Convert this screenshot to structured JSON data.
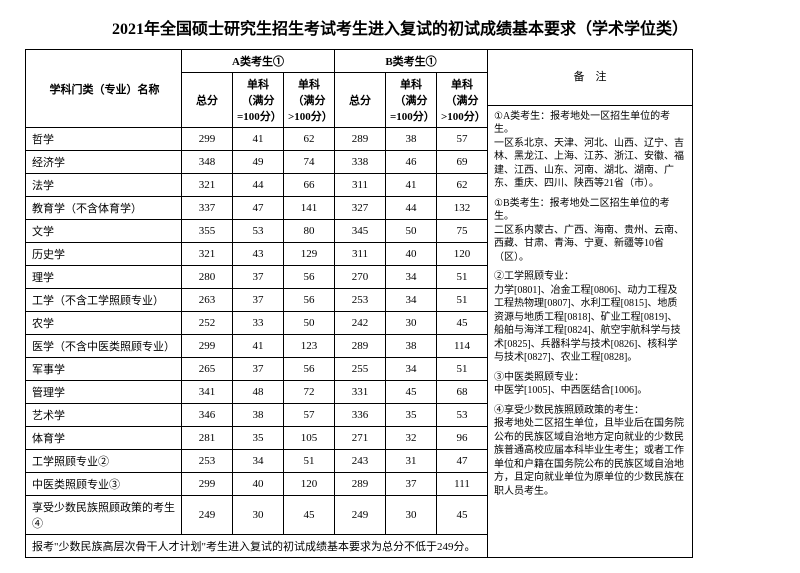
{
  "title": "2021年全国硕士研究生招生考试考生进入复试的初试成绩基本要求（学术学位类）",
  "headers": {
    "subject": "学科门类（专业）名称",
    "catA": "A类考生①",
    "catB": "B类考生①",
    "total": "总分",
    "s100": "单科（满分=100分）",
    "sgt100": "单科（满分>100分）",
    "notes": "备　注"
  },
  "rows": [
    {
      "name": "哲学",
      "a": [
        299,
        41,
        62
      ],
      "b": [
        289,
        38,
        57
      ]
    },
    {
      "name": "经济学",
      "a": [
        348,
        49,
        74
      ],
      "b": [
        338,
        46,
        69
      ]
    },
    {
      "name": "法学",
      "a": [
        321,
        44,
        66
      ],
      "b": [
        311,
        41,
        62
      ]
    },
    {
      "name": "教育学（不含体育学）",
      "a": [
        337,
        47,
        141
      ],
      "b": [
        327,
        44,
        132
      ]
    },
    {
      "name": "文学",
      "a": [
        355,
        53,
        80
      ],
      "b": [
        345,
        50,
        75
      ]
    },
    {
      "name": "历史学",
      "a": [
        321,
        43,
        129
      ],
      "b": [
        311,
        40,
        120
      ]
    },
    {
      "name": "理学",
      "a": [
        280,
        37,
        56
      ],
      "b": [
        270,
        34,
        51
      ]
    },
    {
      "name": "工学（不含工学照顾专业）",
      "a": [
        263,
        37,
        56
      ],
      "b": [
        253,
        34,
        51
      ]
    },
    {
      "name": "农学",
      "a": [
        252,
        33,
        50
      ],
      "b": [
        242,
        30,
        45
      ]
    },
    {
      "name": "医学（不含中医类照顾专业）",
      "a": [
        299,
        41,
        123
      ],
      "b": [
        289,
        38,
        114
      ]
    },
    {
      "name": "军事学",
      "a": [
        265,
        37,
        56
      ],
      "b": [
        255,
        34,
        51
      ]
    },
    {
      "name": "管理学",
      "a": [
        341,
        48,
        72
      ],
      "b": [
        331,
        45,
        68
      ]
    },
    {
      "name": "艺术学",
      "a": [
        346,
        38,
        57
      ],
      "b": [
        336,
        35,
        53
      ]
    },
    {
      "name": "体育学",
      "a": [
        281,
        35,
        105
      ],
      "b": [
        271,
        32,
        96
      ]
    },
    {
      "name": "工学照顾专业②",
      "a": [
        253,
        34,
        51
      ],
      "b": [
        243,
        31,
        47
      ]
    },
    {
      "name": "中医类照顾专业③",
      "a": [
        299,
        40,
        120
      ],
      "b": [
        289,
        37,
        111
      ]
    },
    {
      "name": "享受少数民族照顾政策的考生④",
      "a": [
        249,
        30,
        45
      ],
      "b": [
        249,
        30,
        45
      ]
    }
  ],
  "notes": {
    "n1a": "①A类考生：报考地处一区招生单位的考生。",
    "n1a2": "一区系北京、天津、河北、山西、辽宁、吉林、黑龙江、上海、江苏、浙江、安徽、福建、江西、山东、河南、湖北、湖南、广东、重庆、四川、陕西等21省（市）。",
    "n1b": "①B类考生：报考地处二区招生单位的考生。",
    "n1b2": "二区系内蒙古、广西、海南、贵州、云南、西藏、甘肃、青海、宁夏、新疆等10省（区）。",
    "n2": "②工学照顾专业：",
    "n2b": "力学[0801]、冶金工程[0806]、动力工程及工程热物理[0807]、水利工程[0815]、地质资源与地质工程[0818]、矿业工程[0819]、船舶与海洋工程[0824]、航空宇航科学与技术[0825]、兵器科学与技术[0826]、核科学与技术[0827]、农业工程[0828]。",
    "n3": "③中医类照顾专业：",
    "n3b": "中医学[1005]、中西医结合[1006]。",
    "n4": "④享受少数民族照顾政策的考生：",
    "n4b": "报考地处二区招生单位，且毕业后在国务院公布的民族区域自治地方定向就业的少数民族普通高校应届本科毕业生考生；或者工作单位和户籍在国务院公布的民族区域自治地方，且定向就业单位为原单位的少数民族在职人员考生。"
  },
  "footnote": "报考\"少数民族高层次骨干人才计划\"考生进入复试的初试成绩基本要求为总分不低于249分。"
}
